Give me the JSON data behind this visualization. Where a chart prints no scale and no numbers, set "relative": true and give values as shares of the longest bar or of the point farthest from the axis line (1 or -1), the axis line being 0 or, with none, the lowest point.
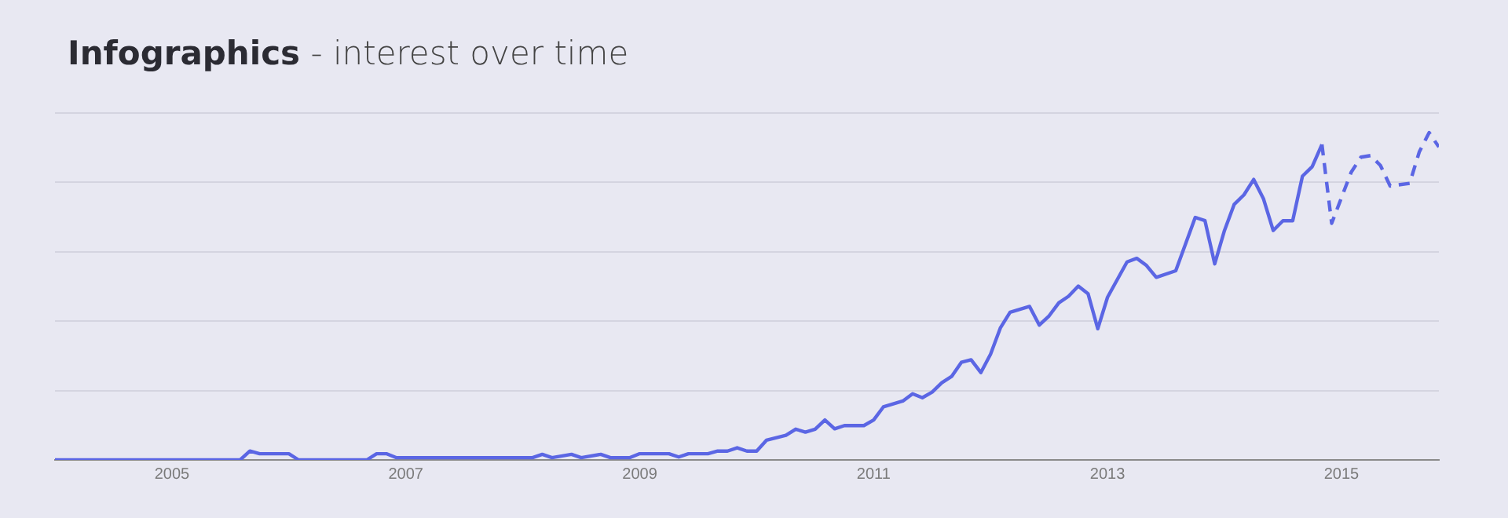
{
  "chart_data": {
    "type": "line",
    "title": "Infographics - interest over time",
    "relative": true,
    "grid": "y",
    "xlim": [
      "2004-01",
      "2015-11"
    ],
    "xticks": [
      "2005",
      "2007",
      "2009",
      "2011",
      "2013",
      "2015"
    ],
    "series": [
      {
        "color": "#5b66e4",
        "line_style": "solid",
        "x": [
          "2004-01",
          "2005-08",
          "2005-09",
          "2005-10",
          "2006-01",
          "2006-02",
          "2006-09",
          "2006-10",
          "2006-11",
          "2006-12",
          "2008-02",
          "2008-03",
          "2008-04",
          "2008-06",
          "2008-07",
          "2008-09",
          "2008-10",
          "2008-12",
          "2009-01",
          "2009-04",
          "2009-05",
          "2009-06",
          "2009-08",
          "2009-09",
          "2009-10",
          "2009-11",
          "2009-12",
          "2010-01",
          "2010-02",
          "2010-04",
          "2010-05",
          "2010-06",
          "2010-07",
          "2010-08",
          "2010-09",
          "2010-10",
          "2010-12",
          "2011-01",
          "2011-02",
          "2011-04",
          "2011-05",
          "2011-06",
          "2011-07",
          "2011-08",
          "2011-09",
          "2011-10",
          "2011-11",
          "2011-12",
          "2012-01",
          "2012-02",
          "2012-03",
          "2012-05",
          "2012-06",
          "2012-07",
          "2012-08",
          "2012-09",
          "2012-10",
          "2012-11",
          "2012-12",
          "2013-01",
          "2013-03",
          "2013-04",
          "2013-05",
          "2013-06",
          "2013-08",
          "2013-10",
          "2013-11",
          "2013-12",
          "2014-01",
          "2014-02",
          "2014-03",
          "2014-04",
          "2014-05",
          "2014-06",
          "2014-07",
          "2014-08",
          "2014-09",
          "2014-10",
          "2014-11"
        ],
        "values": [
          0,
          0,
          0.027,
          0.019,
          0.019,
          0,
          0,
          0.019,
          0.019,
          0.007,
          0.007,
          0.017,
          0.007,
          0.017,
          0.007,
          0.017,
          0.007,
          0.007,
          0.019,
          0.019,
          0.009,
          0.019,
          0.019,
          0.027,
          0.027,
          0.037,
          0.027,
          0.027,
          0.06,
          0.075,
          0.094,
          0.085,
          0.094,
          0.122,
          0.095,
          0.105,
          0.105,
          0.122,
          0.162,
          0.18,
          0.202,
          0.19,
          0.207,
          0.236,
          0.255,
          0.298,
          0.306,
          0.267,
          0.323,
          0.403,
          0.451,
          0.469,
          0.412,
          0.44,
          0.48,
          0.5,
          0.531,
          0.508,
          0.401,
          0.497,
          0.605,
          0.616,
          0.594,
          0.558,
          0.578,
          0.741,
          0.731,
          0.599,
          0.701,
          0.781,
          0.81,
          0.857,
          0.798,
          0.701,
          0.731,
          0.731,
          0.867,
          0.896,
          0.964
        ]
      },
      {
        "color": "#5b66e4",
        "line_style": "dashed",
        "x": [
          "2014-11",
          "2014-12",
          "2015-02",
          "2015-03",
          "2015-04",
          "2015-05",
          "2015-06",
          "2015-08",
          "2015-09",
          "2015-10",
          "2015-11"
        ],
        "values": [
          0.964,
          0.723,
          0.879,
          0.925,
          0.93,
          0.9,
          0.837,
          0.845,
          0.942,
          1,
          0.956
        ]
      }
    ]
  }
}
